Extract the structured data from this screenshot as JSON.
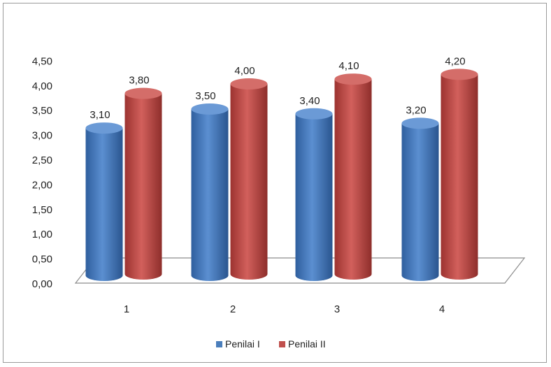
{
  "chart_data": {
    "type": "bar",
    "style": "3d-cylinder",
    "categories": [
      "1",
      "2",
      "3",
      "4"
    ],
    "series": [
      {
        "name": "Penilai I",
        "color": "#4a7ebb",
        "values": [
          3.1,
          3.5,
          3.4,
          3.2
        ],
        "labels": [
          "3,10",
          "3,50",
          "3,40",
          "3,20"
        ]
      },
      {
        "name": "Penilai II",
        "color": "#c0504d",
        "values": [
          3.8,
          4.0,
          4.1,
          4.2
        ],
        "labels": [
          "3,80",
          "4,00",
          "4,10",
          "4,20"
        ]
      }
    ],
    "ylim": [
      0,
      4.5
    ],
    "yticks": [
      "0,00",
      "0,50",
      "1,00",
      "1,50",
      "2,00",
      "2,50",
      "3,00",
      "3,50",
      "4,00",
      "4,50"
    ],
    "grid": false,
    "legend": "bottom"
  }
}
